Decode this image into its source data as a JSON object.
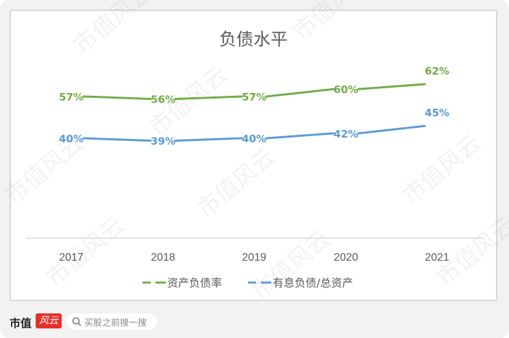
{
  "chart_data": {
    "type": "line",
    "title": "负债水平",
    "categories": [
      "2017",
      "2018",
      "2019",
      "2020",
      "2021"
    ],
    "series": [
      {
        "name": "资产负债率",
        "color": "#70ad47",
        "values": [
          57,
          56,
          57,
          60,
          62
        ],
        "labels": [
          "57%",
          "56%",
          "57%",
          "60%",
          "62%"
        ]
      },
      {
        "name": "有息负债/总资产",
        "color": "#5b9bd5",
        "values": [
          40,
          39,
          40,
          42,
          45
        ],
        "labels": [
          "40%",
          "39%",
          "40%",
          "42%",
          "45%"
        ]
      }
    ],
    "xlabel": "",
    "ylabel": "",
    "grid": false,
    "legend_position": "bottom",
    "unit": "%"
  },
  "footer": {
    "brand": "市值",
    "brand_badge": "风云",
    "search_placeholder": "买股之前搜一搜"
  },
  "watermark": "市值风云"
}
